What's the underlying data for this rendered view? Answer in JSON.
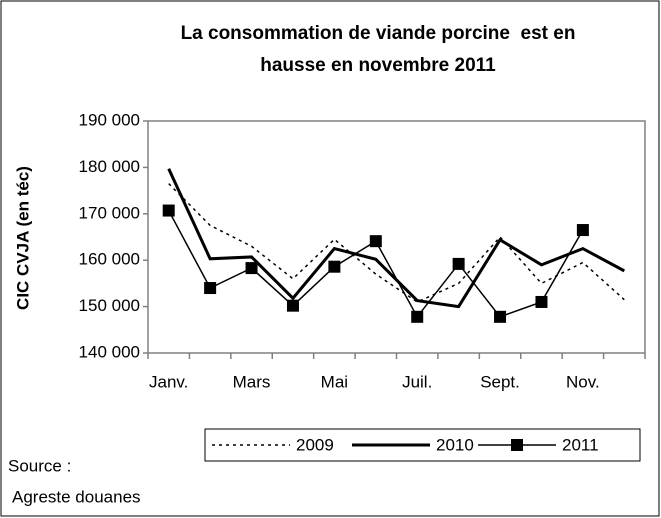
{
  "chart_data": {
    "type": "line",
    "title": [
      "La consommation de viande porcine  est en",
      "hausse en novembre 2011"
    ],
    "y_label": "CIC CVJA (en téc)",
    "categories": [
      "Janv.",
      null,
      "Mars",
      null,
      "Mai",
      null,
      "Juil.",
      null,
      "Sept.",
      null,
      "Nov.",
      null
    ],
    "series": [
      {
        "name": "2009",
        "color": "#000000",
        "width": 1.5,
        "dash": "3,4",
        "marker": "none",
        "values": [
          176500,
          167500,
          163000,
          156000,
          164500,
          157000,
          151000,
          155000,
          165000,
          155000,
          159500,
          151500
        ]
      },
      {
        "name": "2010",
        "color": "#000000",
        "width": 3,
        "dash": "none",
        "marker": "none",
        "values": [
          179700,
          160300,
          160700,
          151800,
          162500,
          160200,
          151300,
          150000,
          164400,
          159000,
          162500,
          157700
        ]
      },
      {
        "name": "2011",
        "color": "#000000",
        "width": 1.5,
        "dash": "none",
        "marker": "square",
        "values": [
          170700,
          154000,
          158300,
          150200,
          158600,
          164100,
          147800,
          159200,
          147800,
          151000,
          166500,
          null
        ]
      }
    ],
    "ylim": [
      140000,
      190000
    ],
    "yticks": [
      {
        "value": 140000,
        "label": "140 000"
      },
      {
        "value": 150000,
        "label": "150 000"
      },
      {
        "value": 160000,
        "label": "160 000"
      },
      {
        "value": 170000,
        "label": "170 000"
      },
      {
        "value": 180000,
        "label": "180 000"
      },
      {
        "value": 190000,
        "label": "190 000"
      }
    ],
    "grid": false,
    "legend": "bottom",
    "source_label": "Source :",
    "source": "Agreste douanes"
  }
}
